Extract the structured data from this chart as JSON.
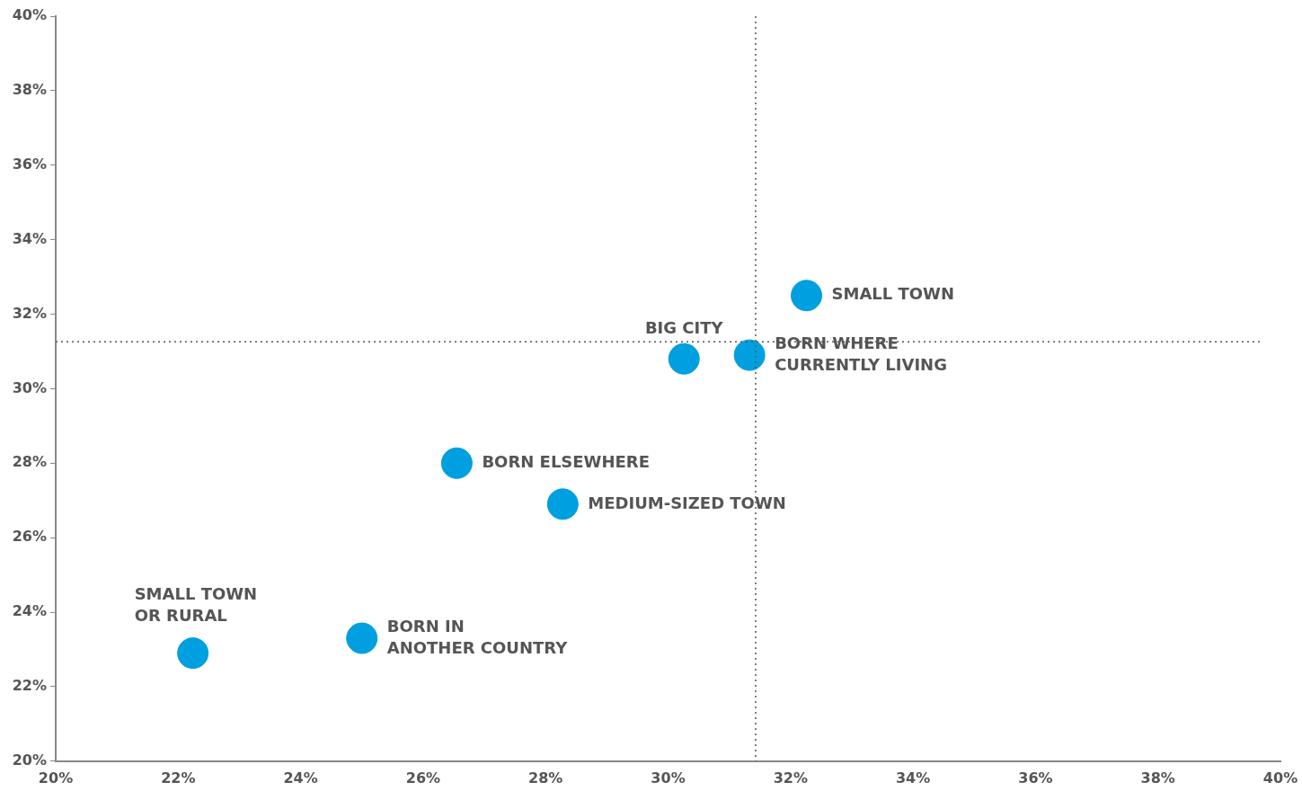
{
  "chart_data": {
    "type": "scatter",
    "x": [
      22.24,
      25.0,
      26.55,
      28.28,
      30.26,
      31.33,
      32.26
    ],
    "series": [
      {
        "color": "#009fdf",
        "values": [
          22.9,
          23.3,
          28.0,
          26.9,
          30.8,
          30.9,
          32.5
        ]
      }
    ],
    "marker": "circle",
    "xlim": [
      20,
      40
    ],
    "ylim": [
      20,
      40
    ],
    "xticks": [
      {
        "value": 20,
        "label": "20%"
      },
      {
        "value": 22,
        "label": "22%"
      },
      {
        "value": 24,
        "label": "24%"
      },
      {
        "value": 26,
        "label": "26%"
      },
      {
        "value": 28,
        "label": "28%"
      },
      {
        "value": 30,
        "label": "30%"
      },
      {
        "value": 32,
        "label": "32%"
      },
      {
        "value": 34,
        "label": "34%"
      },
      {
        "value": 36,
        "label": "36%"
      },
      {
        "value": 38,
        "label": "38%"
      },
      {
        "value": 40,
        "label": "40%"
      }
    ],
    "yticks": [
      {
        "value": 20,
        "label": "20%"
      },
      {
        "value": 22,
        "label": "22%"
      },
      {
        "value": 24,
        "label": "24%"
      },
      {
        "value": 26,
        "label": "26%"
      },
      {
        "value": 28,
        "label": "28%"
      },
      {
        "value": 30,
        "label": "30%"
      },
      {
        "value": 32,
        "label": "32%"
      },
      {
        "value": 34,
        "label": "34%"
      },
      {
        "value": 36,
        "label": "36%"
      },
      {
        "value": 38,
        "label": "38%"
      },
      {
        "value": 40,
        "label": "40%"
      }
    ],
    "ref_lines": [
      {
        "axis": "x",
        "value": 31.43,
        "line_style": "dotted",
        "color": "#555555"
      },
      {
        "axis": "y",
        "value": 31.26,
        "line_style": "dotted",
        "color": "#555555"
      }
    ],
    "annotations": [
      {
        "text": "SMALL TOWN\nOR RURAL",
        "x": 22.24,
        "y": 22.9
      },
      {
        "text": "BORN IN\nANOTHER COUNTRY",
        "x": 25.0,
        "y": 23.3
      },
      {
        "text": "BORN ELSEWHERE",
        "x": 26.55,
        "y": 28.0
      },
      {
        "text": "MEDIUM-SIZED TOWN",
        "x": 28.28,
        "y": 26.9
      },
      {
        "text": "BIG CITY",
        "x": 30.26,
        "y": 30.8
      },
      {
        "text": "BORN WHERE\nCURRENTLY LIVING",
        "x": 31.33,
        "y": 30.9
      },
      {
        "text": "SMALL TOWN",
        "x": 32.26,
        "y": 32.5
      }
    ],
    "grid": false,
    "legend": false
  }
}
